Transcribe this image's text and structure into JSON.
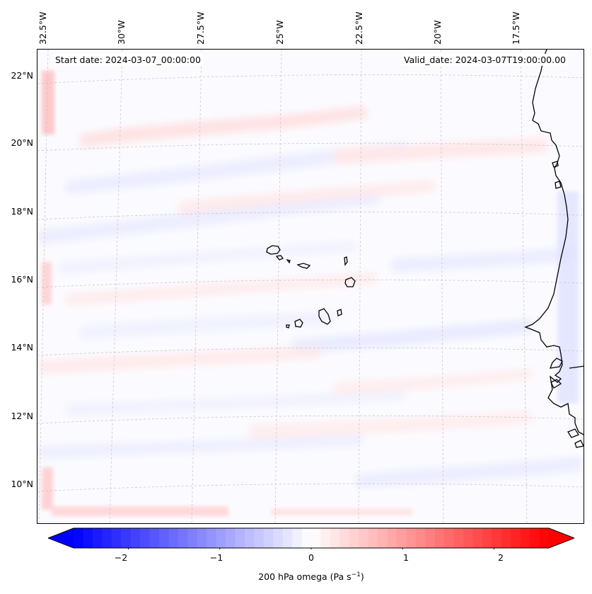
{
  "header": {
    "start_date": "Start date: 2024-03-07_00:00:00",
    "valid_date": "Valid_date: 2024-03-07T19:00:00.00"
  },
  "map": {
    "region": "Cape Verde Islands and West African coast",
    "latitude_labels": [
      "22°N",
      "20°N",
      "18°N",
      "16°N",
      "14°N",
      "12°N",
      "10°N"
    ],
    "longitude_labels": [
      "32.5°W",
      "30°W",
      "27.5°W",
      "25°W",
      "22.5°W",
      "20°W",
      "17.5°W"
    ],
    "gridlines": "dashed light grey",
    "field": "200 hPa omega, weak mixed positive/negative values, mostly near 0"
  },
  "colorbar": {
    "min": -2.6,
    "max": 2.6,
    "ticks": [
      "−2",
      "−1",
      "0",
      "1",
      "2"
    ],
    "tick_values": [
      -2,
      -1,
      0,
      1,
      2
    ],
    "colormap": "bwr",
    "colors": {
      "negative": "#0000ff",
      "zero": "#ffffff",
      "positive": "#ff0000"
    },
    "label_prefix": "200 hPa omega (Pa s",
    "label_exp": "−1",
    "label_suffix": ")"
  }
}
